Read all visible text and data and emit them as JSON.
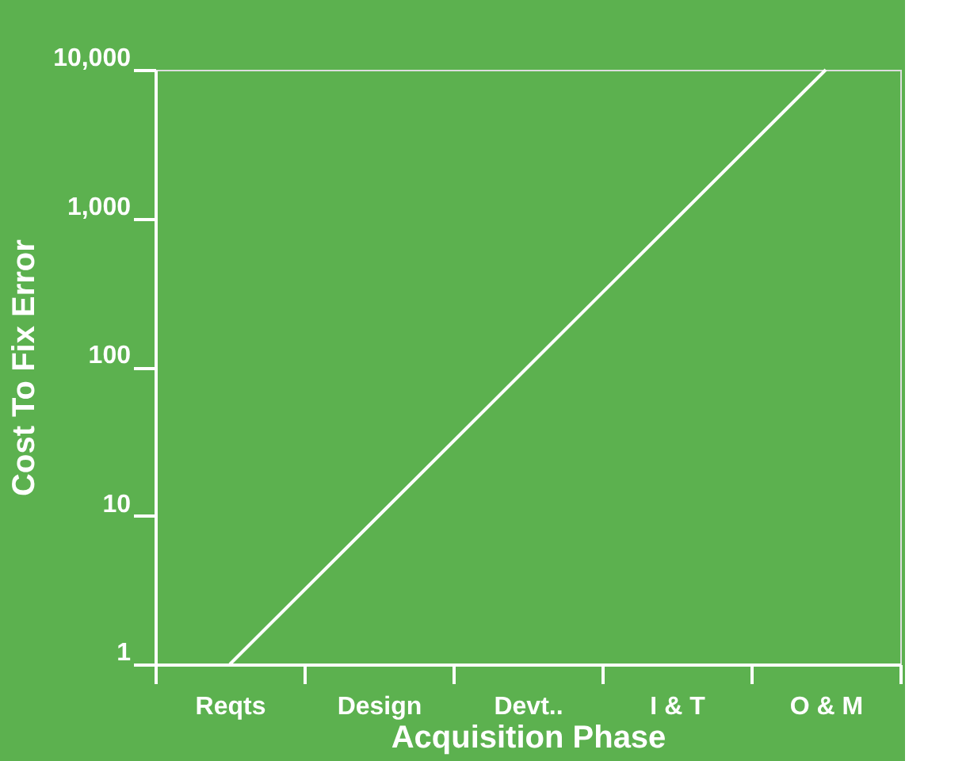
{
  "chart_data": {
    "type": "line",
    "xlabel": "Acquisition Phase",
    "ylabel": "Cost To  Fix Error",
    "categories": [
      "Reqts",
      "Design",
      "Devt..",
      "I & T",
      "O & M"
    ],
    "series": [
      {
        "color": "#ffffff",
        "values": [
          1,
          10,
          100,
          1000,
          10000
        ]
      }
    ],
    "log": "y",
    "ylim": [
      1,
      10000
    ],
    "yticks": [
      1,
      10,
      100,
      {
        "value": 1000,
        "label": "1,000"
      },
      {
        "value": 10000,
        "label": "10,000"
      }
    ],
    "grid": false,
    "legend": false,
    "marker": "none",
    "line_style": "solid"
  }
}
